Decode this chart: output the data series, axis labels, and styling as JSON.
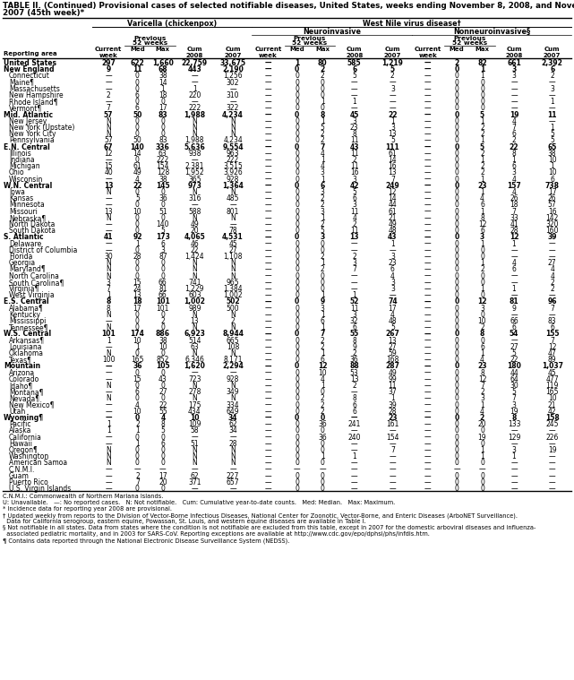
{
  "title_line1": "TABLE II. (Continued) Provisional cases of selected notifiable diseases, United States, weeks ending November 8, 2008, and November 10,",
  "title_line2": "2007 (45th week)*",
  "col_headers": {
    "varicella": "Varicella (chickenpox)",
    "west_nile": "West Nile virus disease†",
    "neuroinvasive": "Neuroinvasive",
    "nonneuroinvasive": "Nonneuroinvasive§"
  },
  "rows": [
    [
      "United States",
      "297",
      "622",
      "1,660",
      "22,759",
      "33,675",
      "—",
      "1",
      "80",
      "585",
      "1,219",
      "—",
      "2",
      "82",
      "661",
      "2,392"
    ],
    [
      "New England",
      "9",
      "11",
      "68",
      "443",
      "2,190",
      "—",
      "0",
      "2",
      "6",
      "5",
      "—",
      "0",
      "1",
      "3",
      "6"
    ],
    [
      "Connecticut",
      "—",
      "0",
      "38",
      "—",
      "1,256",
      "—",
      "0",
      "2",
      "5",
      "2",
      "—",
      "0",
      "1",
      "3",
      "2"
    ],
    [
      "Maine¶",
      "—",
      "0",
      "14",
      "—",
      "302",
      "—",
      "0",
      "0",
      "—",
      "—",
      "—",
      "0",
      "0",
      "—",
      "—"
    ],
    [
      "Massachusetts",
      "—",
      "0",
      "1",
      "1",
      "—",
      "—",
      "0",
      "0",
      "—",
      "3",
      "—",
      "0",
      "0",
      "—",
      "3"
    ],
    [
      "New Hampshire",
      "2",
      "6",
      "18",
      "220",
      "310",
      "—",
      "0",
      "0",
      "—",
      "—",
      "—",
      "0",
      "0",
      "—",
      "—"
    ],
    [
      "Rhode Island¶",
      "—",
      "0",
      "0",
      "—",
      "—",
      "—",
      "0",
      "1",
      "1",
      "—",
      "—",
      "0",
      "0",
      "—",
      "1"
    ],
    [
      "Vermont¶",
      "7",
      "6",
      "17",
      "222",
      "322",
      "—",
      "0",
      "0",
      "—",
      "—",
      "—",
      "0",
      "0",
      "—",
      "—"
    ],
    [
      "Mid. Atlantic",
      "57",
      "50",
      "83",
      "1,988",
      "4,234",
      "—",
      "0",
      "8",
      "45",
      "22",
      "—",
      "0",
      "5",
      "19",
      "11"
    ],
    [
      "New Jersey",
      "N",
      "0",
      "0",
      "N",
      "N",
      "—",
      "0",
      "1",
      "3",
      "1",
      "—",
      "0",
      "1",
      "4",
      "—"
    ],
    [
      "New York (Upstate)",
      "N",
      "0",
      "0",
      "N",
      "N",
      "—",
      "0",
      "5",
      "23",
      "3",
      "—",
      "0",
      "2",
      "7",
      "1"
    ],
    [
      "New York City",
      "N",
      "0",
      "0",
      "N",
      "N",
      "—",
      "0",
      "2",
      "8",
      "13",
      "—",
      "0",
      "2",
      "6",
      "5"
    ],
    [
      "Pennsylvania",
      "57",
      "50",
      "83",
      "1,988",
      "4,234",
      "—",
      "0",
      "2",
      "11",
      "5",
      "—",
      "0",
      "1",
      "2",
      "5"
    ],
    [
      "E.N. Central",
      "67",
      "140",
      "336",
      "5,636",
      "9,554",
      "—",
      "0",
      "7",
      "43",
      "111",
      "—",
      "0",
      "5",
      "22",
      "65"
    ],
    [
      "Illinois",
      "12",
      "14",
      "63",
      "938",
      "963",
      "—",
      "0",
      "4",
      "11",
      "61",
      "—",
      "0",
      "2",
      "8",
      "38"
    ],
    [
      "Indiana",
      "—",
      "0",
      "222",
      "—",
      "222",
      "—",
      "0",
      "1",
      "2",
      "14",
      "—",
      "0",
      "1",
      "1",
      "10"
    ],
    [
      "Michigan",
      "15",
      "61",
      "154",
      "2,381",
      "3,515",
      "—",
      "0",
      "4",
      "11",
      "16",
      "—",
      "0",
      "2",
      "6",
      "1"
    ],
    [
      "Ohio",
      "40",
      "49",
      "128",
      "1,952",
      "3,926",
      "—",
      "0",
      "3",
      "16",
      "13",
      "—",
      "0",
      "2",
      "3",
      "10"
    ],
    [
      "Wisconsin",
      "—",
      "4",
      "38",
      "365",
      "928",
      "—",
      "0",
      "1",
      "3",
      "7",
      "—",
      "0",
      "1",
      "4",
      "6"
    ],
    [
      "W.N. Central",
      "13",
      "22",
      "145",
      "973",
      "1,364",
      "—",
      "0",
      "6",
      "42",
      "249",
      "—",
      "0",
      "23",
      "157",
      "738"
    ],
    [
      "Iowa",
      "N",
      "0",
      "0",
      "N",
      "N",
      "—",
      "0",
      "3",
      "5",
      "12",
      "—",
      "0",
      "1",
      "4",
      "17"
    ],
    [
      "Kansas",
      "—",
      "5",
      "36",
      "316",
      "485",
      "—",
      "0",
      "2",
      "6",
      "14",
      "—",
      "0",
      "4",
      "26",
      "26"
    ],
    [
      "Minnesota",
      "—",
      "0",
      "0",
      "—",
      "—",
      "—",
      "0",
      "2",
      "3",
      "44",
      "—",
      "0",
      "6",
      "18",
      "57"
    ],
    [
      "Missouri",
      "13",
      "10",
      "51",
      "588",
      "801",
      "—",
      "0",
      "3",
      "11",
      "61",
      "—",
      "0",
      "1",
      "7",
      "16"
    ],
    [
      "Nebraska¶",
      "N",
      "0",
      "0",
      "N",
      "N",
      "—",
      "0",
      "1",
      "4",
      "21",
      "—",
      "0",
      "8",
      "33",
      "142"
    ],
    [
      "North Dakota",
      "—",
      "0",
      "140",
      "49",
      "—",
      "—",
      "0",
      "2",
      "2",
      "49",
      "—",
      "0",
      "12",
      "41",
      "320"
    ],
    [
      "South Dakota",
      "—",
      "0",
      "5",
      "20",
      "78",
      "—",
      "0",
      "5",
      "11",
      "48",
      "—",
      "0",
      "6",
      "28",
      "160"
    ],
    [
      "S. Atlantic",
      "41",
      "92",
      "173",
      "4,065",
      "4,531",
      "—",
      "0",
      "3",
      "13",
      "43",
      "—",
      "0",
      "3",
      "12",
      "39"
    ],
    [
      "Delaware",
      "—",
      "1",
      "6",
      "46",
      "45",
      "—",
      "0",
      "0",
      "—",
      "1",
      "—",
      "0",
      "1",
      "1",
      "—"
    ],
    [
      "District of Columbia",
      "—",
      "0",
      "3",
      "22",
      "27",
      "—",
      "0",
      "0",
      "—",
      "—",
      "—",
      "0",
      "0",
      "—",
      "—"
    ],
    [
      "Florida",
      "30",
      "28",
      "87",
      "1,424",
      "1,108",
      "—",
      "0",
      "2",
      "2",
      "3",
      "—",
      "0",
      "0",
      "—",
      "—"
    ],
    [
      "Georgia",
      "N",
      "0",
      "0",
      "N",
      "N",
      "—",
      "0",
      "1",
      "3",
      "23",
      "—",
      "0",
      "1",
      "4",
      "27"
    ],
    [
      "Maryland¶",
      "N",
      "0",
      "0",
      "N",
      "N",
      "—",
      "0",
      "2",
      "7",
      "6",
      "—",
      "0",
      "2",
      "6",
      "4"
    ],
    [
      "North Carolina",
      "N",
      "0",
      "0",
      "N",
      "N",
      "—",
      "0",
      "0",
      "—",
      "4",
      "—",
      "0",
      "0",
      "—",
      "4"
    ],
    [
      "South Carolina¶",
      "3",
      "15",
      "66",
      "741",
      "965",
      "—",
      "0",
      "0",
      "—",
      "3",
      "—",
      "0",
      "0",
      "—",
      "2"
    ],
    [
      "Virginia¶",
      "7",
      "24",
      "81",
      "1,229",
      "1,384",
      "—",
      "0",
      "0",
      "—",
      "3",
      "—",
      "0",
      "1",
      "1",
      "2"
    ],
    [
      "West Virginia",
      "1",
      "13",
      "66",
      "603",
      "1,002",
      "—",
      "0",
      "1",
      "1",
      "—",
      "—",
      "0",
      "0",
      "—",
      "—"
    ],
    [
      "E.S. Central",
      "8",
      "18",
      "101",
      "1,002",
      "502",
      "—",
      "0",
      "9",
      "52",
      "74",
      "—",
      "0",
      "12",
      "81",
      "96"
    ],
    [
      "Alabama¶",
      "8",
      "17",
      "101",
      "989",
      "500",
      "—",
      "0",
      "3",
      "11",
      "17",
      "—",
      "0",
      "3",
      "9",
      "7"
    ],
    [
      "Kentucky",
      "N",
      "0",
      "0",
      "N",
      "N",
      "—",
      "0",
      "1",
      "3",
      "4",
      "—",
      "0",
      "0",
      "—",
      "—"
    ],
    [
      "Mississippi",
      "—",
      "0",
      "2",
      "13",
      "2",
      "—",
      "0",
      "6",
      "32",
      "48",
      "—",
      "0",
      "10",
      "66",
      "83"
    ],
    [
      "Tennessee¶",
      "N",
      "0",
      "0",
      "N",
      "N",
      "—",
      "0",
      "1",
      "6",
      "5",
      "—",
      "0",
      "2",
      "6",
      "6"
    ],
    [
      "W.S. Central",
      "101",
      "174",
      "886",
      "6,923",
      "8,944",
      "—",
      "0",
      "7",
      "55",
      "267",
      "—",
      "0",
      "8",
      "54",
      "155"
    ],
    [
      "Arkansas¶",
      "1",
      "10",
      "38",
      "514",
      "665",
      "—",
      "0",
      "2",
      "8",
      "13",
      "—",
      "0",
      "0",
      "—",
      "7"
    ],
    [
      "Louisiana",
      "—",
      "1",
      "10",
      "63",
      "108",
      "—",
      "0",
      "2",
      "9",
      "27",
      "—",
      "0",
      "6",
      "27",
      "12"
    ],
    [
      "Oklahoma",
      "N",
      "0",
      "0",
      "N",
      "N",
      "—",
      "0",
      "1",
      "2",
      "59",
      "—",
      "0",
      "1",
      "5",
      "47"
    ],
    [
      "Texas¶",
      "100",
      "165",
      "852",
      "6,346",
      "8,171",
      "—",
      "0",
      "6",
      "36",
      "168",
      "—",
      "0",
      "4",
      "22",
      "89"
    ],
    [
      "Mountain",
      "—",
      "36",
      "105",
      "1,620",
      "2,294",
      "—",
      "0",
      "12",
      "88",
      "287",
      "—",
      "0",
      "23",
      "180",
      "1,037"
    ],
    [
      "Arizona",
      "—",
      "0",
      "0",
      "—",
      "—",
      "—",
      "0",
      "10",
      "53",
      "49",
      "—",
      "0",
      "8",
      "44",
      "45"
    ],
    [
      "Colorado",
      "—",
      "15",
      "43",
      "723",
      "928",
      "—",
      "0",
      "4",
      "13",
      "99",
      "—",
      "0",
      "12",
      "64",
      "477"
    ],
    [
      "Idaho¶",
      "N",
      "0",
      "0",
      "N",
      "N",
      "—",
      "0",
      "1",
      "2",
      "11",
      "—",
      "0",
      "7",
      "30",
      "119"
    ],
    [
      "Montana¶",
      "—",
      "6",
      "27",
      "278",
      "349",
      "—",
      "0",
      "0",
      "—",
      "37",
      "—",
      "0",
      "2",
      "5",
      "165"
    ],
    [
      "Nevada¶",
      "N",
      "0",
      "0",
      "N",
      "N",
      "—",
      "0",
      "2",
      "8",
      "1",
      "—",
      "0",
      "3",
      "7",
      "10"
    ],
    [
      "New Mexico¶",
      "—",
      "4",
      "22",
      "175",
      "334",
      "—",
      "0",
      "2",
      "6",
      "39",
      "—",
      "0",
      "1",
      "3",
      "21"
    ],
    [
      "Utah",
      "—",
      "10",
      "55",
      "434",
      "649",
      "—",
      "0",
      "2",
      "6",
      "28",
      "—",
      "0",
      "4",
      "19",
      "42"
    ],
    [
      "Wyoming¶",
      "—",
      "0",
      "4",
      "10",
      "34",
      "—",
      "0",
      "0",
      "—",
      "23",
      "—",
      "0",
      "2",
      "8",
      "158"
    ],
    [
      "Pacific",
      "1",
      "2",
      "8",
      "109",
      "62",
      "—",
      "0",
      "36",
      "241",
      "161",
      "—",
      "0",
      "20",
      "133",
      "245"
    ],
    [
      "Alaska",
      "1",
      "1",
      "5",
      "58",
      "34",
      "—",
      "0",
      "0",
      "—",
      "—",
      "—",
      "0",
      "0",
      "—",
      "—"
    ],
    [
      "California",
      "—",
      "0",
      "0",
      "—",
      "—",
      "—",
      "0",
      "36",
      "240",
      "154",
      "—",
      "0",
      "19",
      "129",
      "226"
    ],
    [
      "Hawaii",
      "—",
      "1",
      "6",
      "51",
      "28",
      "—",
      "0",
      "0",
      "—",
      "—",
      "—",
      "0",
      "0",
      "—",
      "—"
    ],
    [
      "Oregon¶",
      "N",
      "0",
      "0",
      "N",
      "N",
      "—",
      "0",
      "0",
      "—",
      "7",
      "—",
      "0",
      "1",
      "3",
      "19"
    ],
    [
      "Washington",
      "N",
      "0",
      "0",
      "N",
      "N",
      "—",
      "0",
      "1",
      "1",
      "—",
      "—",
      "0",
      "1",
      "1",
      "—"
    ],
    [
      "American Samoa",
      "N",
      "0",
      "0",
      "N",
      "N",
      "—",
      "0",
      "0",
      "—",
      "—",
      "—",
      "0",
      "0",
      "—",
      "—"
    ],
    [
      "C.N.M.I.",
      "—",
      "—",
      "—",
      "—",
      "—",
      "—",
      "—",
      "—",
      "—",
      "—",
      "—",
      "—",
      "—",
      "—",
      "—"
    ],
    [
      "Guam",
      "—",
      "2",
      "17",
      "62",
      "227",
      "—",
      "0",
      "0",
      "—",
      "—",
      "—",
      "0",
      "0",
      "—",
      "—"
    ],
    [
      "Puerto Rico",
      "—",
      "7",
      "20",
      "371",
      "657",
      "—",
      "0",
      "0",
      "—",
      "—",
      "—",
      "0",
      "0",
      "—",
      "—"
    ],
    [
      "U.S. Virgin Islands",
      "—",
      "0",
      "0",
      "—",
      "—",
      "—",
      "0",
      "0",
      "—",
      "—",
      "—",
      "0",
      "0",
      "—",
      "—"
    ]
  ],
  "bold_rows": [
    0,
    1,
    8,
    13,
    19,
    27,
    37,
    42,
    47,
    55
  ],
  "footnotes": [
    "C.N.M.I.: Commonwealth of Northern Mariana Islands.",
    "U: Unavailable.   —: No reported cases.   N: Not notifiable.   Cum: Cumulative year-to-date counts.   Med: Median.   Max: Maximum.",
    "* Incidence data for reporting year 2008 are provisional.",
    "† Updated weekly from reports to the Division of Vector-Borne Infectious Diseases, National Center for Zoonotic, Vector-Borne, and Enteric Diseases (ArboNET Surveillance).",
    "  Data for California serogroup, eastern equine, Powassan, St. Louis, and western equine diseases are available in Table I.",
    "§ Not notifiable in all states. Data from states where the condition is not notifiable are excluded from this table, except in 2007 for the domestic arboviral diseases and influenza-",
    "  associated pediatric mortality, and in 2003 for SARS-CoV. Reporting exceptions are available at http://www.cdc.gov/epo/dphsi/phs/infdis.htm.",
    "¶ Contains data reported through the National Electronic Disease Surveillance System (NEDSS)."
  ]
}
